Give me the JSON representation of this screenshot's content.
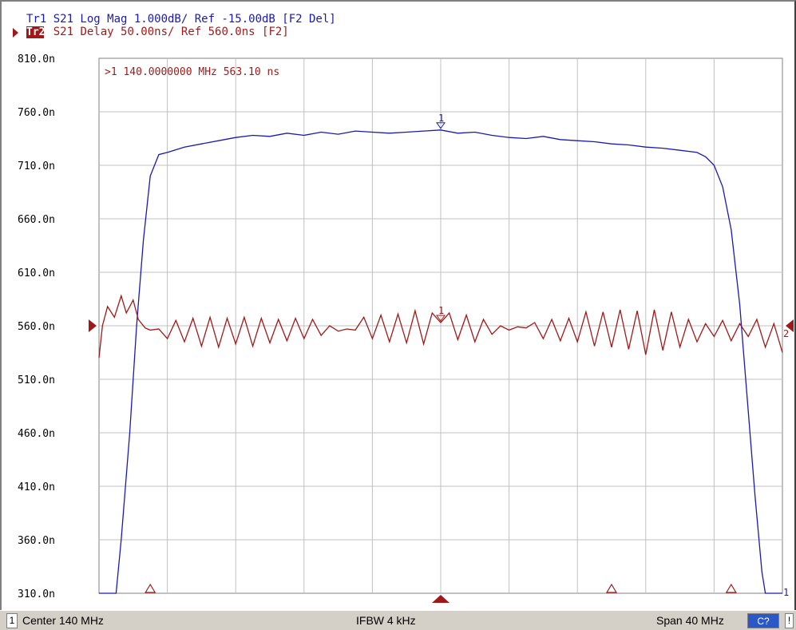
{
  "header": {
    "trace1": "Tr1 S21 Log Mag 1.000dB/ Ref -15.00dB [F2 Del]",
    "trace2_tag": "Tr2",
    "trace2": " S21 Delay 50.00ns/ Ref 560.0ns [F2]"
  },
  "marker_readout": ">1  140.0000000 MHz   563.10 ns",
  "status_bar": {
    "channel": "1",
    "center": "Center 140 MHz",
    "ifbw": "IFBW 4 kHz",
    "span": "Span 40 MHz",
    "cal": "C?",
    "warning": "!"
  },
  "colors": {
    "trace1": "#1a1ab0",
    "trace2": "#9e1a1a",
    "grid": "#c0c0c0",
    "background": "#ffffff"
  },
  "chart_data": {
    "type": "line",
    "x_range_mhz": [
      120,
      160
    ],
    "ylim": [
      310,
      810
    ],
    "y_ticks": [
      "810.0n",
      "760.0n",
      "710.0n",
      "660.0n",
      "610.0n",
      "560.0n",
      "510.0n",
      "460.0n",
      "410.0n",
      "360.0n",
      "310.0n"
    ],
    "grid": true,
    "series": [
      {
        "name": "Tr1",
        "marker_label": "1",
        "end_label": "1",
        "x": [
          120,
          121,
          121.3,
          121.8,
          122.2,
          122.6,
          123,
          123.5,
          124,
          125,
          126,
          127,
          128,
          129,
          130,
          131,
          132,
          133,
          134,
          135,
          136,
          137,
          138,
          139,
          140,
          141,
          142,
          143,
          144,
          145,
          146,
          147,
          148,
          149,
          150,
          151,
          152,
          153,
          154,
          155,
          155.5,
          156,
          156.5,
          157,
          157.5,
          158,
          158.4,
          158.8,
          159,
          160
        ],
        "values": [
          310,
          310,
          360,
          460,
          560,
          640,
          700,
          720,
          722,
          727,
          730,
          733,
          736,
          738,
          737,
          740,
          738,
          741,
          739,
          742,
          741,
          740,
          741,
          742,
          743,
          740,
          741,
          738,
          736,
          735,
          737,
          734,
          733,
          732,
          730,
          729,
          727,
          726,
          724,
          722,
          718,
          710,
          690,
          650,
          580,
          480,
          400,
          330,
          310,
          310
        ]
      },
      {
        "name": "Tr2",
        "marker_label": "1",
        "end_label": "2",
        "x": [
          120,
          120.2,
          120.5,
          120.9,
          121.3,
          121.6,
          122,
          122.3,
          122.7,
          123,
          123.5,
          124,
          124.5,
          125,
          125.5,
          126,
          126.5,
          127,
          127.5,
          128,
          128.5,
          129,
          129.5,
          130,
          130.5,
          131,
          131.5,
          132,
          132.5,
          133,
          133.5,
          134,
          134.5,
          135,
          135.5,
          136,
          136.5,
          137,
          137.5,
          138,
          138.5,
          139,
          139.5,
          140,
          140.5,
          141,
          141.5,
          142,
          142.5,
          143,
          143.5,
          144,
          144.5,
          145,
          145.5,
          146,
          146.5,
          147,
          147.5,
          148,
          148.5,
          149,
          149.5,
          150,
          150.5,
          151,
          151.5,
          152,
          152.5,
          153,
          153.5,
          154,
          154.5,
          155,
          155.5,
          156,
          156.5,
          157,
          157.5,
          158,
          158.5,
          159,
          159.5,
          160
        ],
        "values": [
          530,
          560,
          578,
          568,
          588,
          572,
          584,
          566,
          558,
          556,
          557,
          548,
          565,
          545,
          567,
          541,
          568,
          540,
          567,
          543,
          568,
          541,
          567,
          544,
          566,
          546,
          567,
          548,
          566,
          551,
          560,
          555,
          557,
          556,
          568,
          548,
          570,
          545,
          571,
          544,
          574,
          543,
          572,
          563,
          572,
          547,
          570,
          545,
          566,
          552,
          560,
          556,
          559,
          558,
          563,
          548,
          566,
          546,
          567,
          545,
          573,
          541,
          573,
          540,
          575,
          538,
          574,
          533,
          575,
          537,
          573,
          540,
          566,
          545,
          562,
          550,
          565,
          546,
          562,
          550,
          566,
          540,
          562,
          535
        ]
      }
    ],
    "marker": {
      "x": 140,
      "label": "1"
    },
    "bottom_markers_mhz": [
      123,
      150,
      157
    ]
  }
}
